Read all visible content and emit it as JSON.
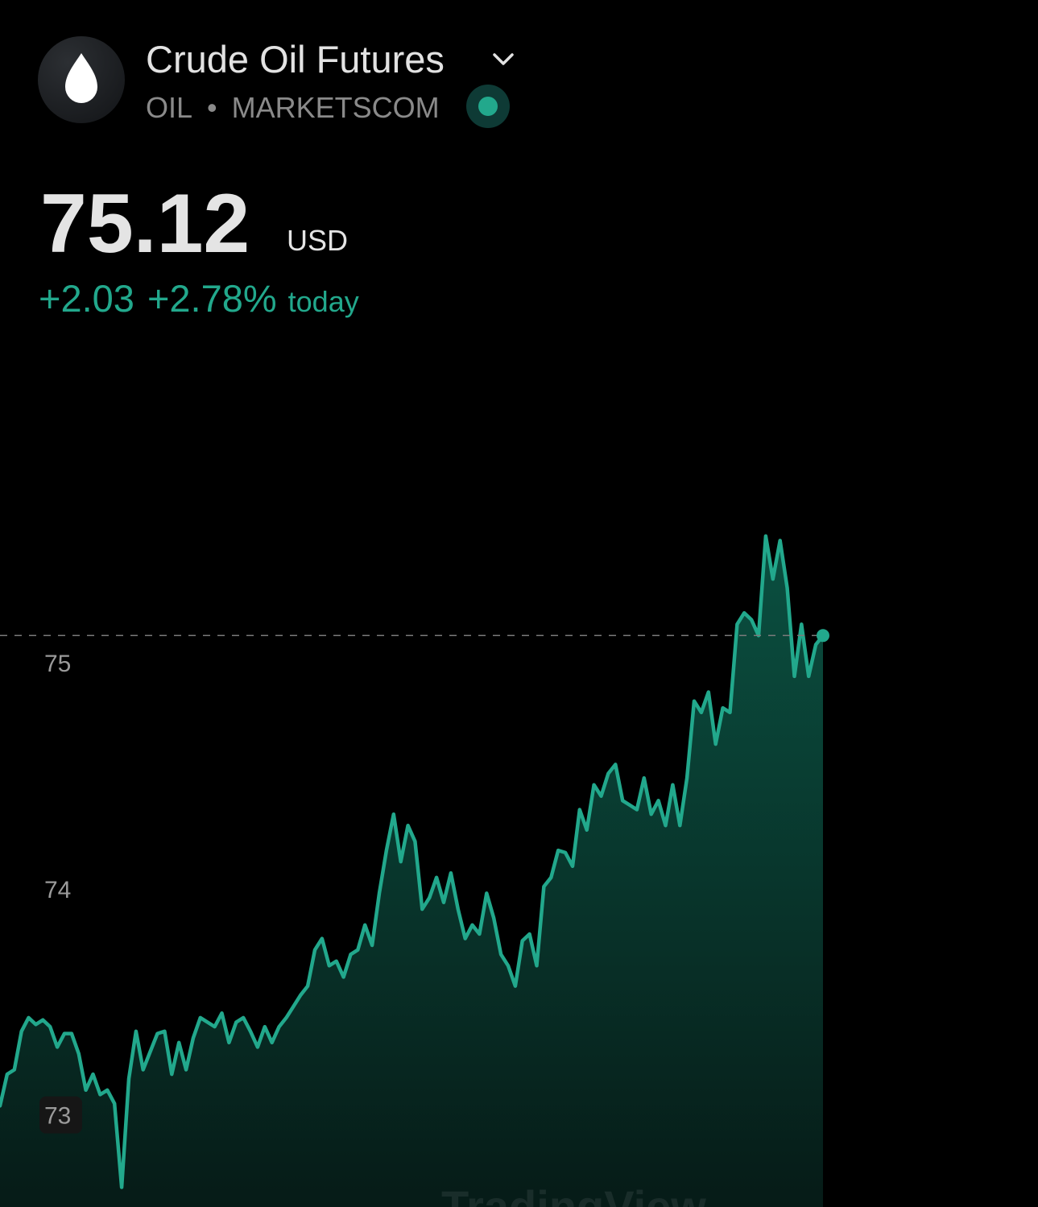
{
  "header": {
    "title": "Crude Oil Futures",
    "symbol": "OIL",
    "separator": "•",
    "exchange": "MARKETSCOM"
  },
  "quote": {
    "price": "75.12",
    "currency": "USD",
    "change": "+2.03",
    "change_percent": "+2.78%",
    "period": "today"
  },
  "chart_data": {
    "type": "area",
    "color": "#22a88c",
    "values": [
      73.04,
      73.18,
      73.2,
      73.37,
      73.43,
      73.4,
      73.42,
      73.39,
      73.3,
      73.36,
      73.36,
      73.27,
      73.11,
      73.18,
      73.09,
      73.11,
      73.05,
      72.68,
      73.16,
      73.37,
      73.2,
      73.28,
      73.36,
      73.37,
      73.18,
      73.32,
      73.2,
      73.34,
      73.43,
      73.41,
      73.39,
      73.45,
      73.32,
      73.41,
      73.43,
      73.37,
      73.3,
      73.39,
      73.32,
      73.39,
      73.43,
      73.48,
      73.53,
      73.57,
      73.73,
      73.78,
      73.66,
      73.68,
      73.61,
      73.71,
      73.73,
      73.84,
      73.75,
      73.98,
      74.17,
      74.33,
      74.12,
      74.28,
      74.21,
      73.91,
      73.96,
      74.05,
      73.94,
      74.07,
      73.91,
      73.78,
      73.84,
      73.8,
      73.98,
      73.87,
      73.71,
      73.66,
      73.57,
      73.77,
      73.8,
      73.66,
      74.01,
      74.05,
      74.17,
      74.16,
      74.1,
      74.35,
      74.26,
      74.46,
      74.41,
      74.51,
      74.55,
      74.39,
      74.37,
      74.35,
      74.49,
      74.33,
      74.39,
      74.28,
      74.46,
      74.28,
      74.49,
      74.83,
      74.78,
      74.87,
      74.64,
      74.8,
      74.78,
      75.17,
      75.22,
      75.19,
      75.12,
      75.56,
      75.37,
      75.54,
      75.33,
      74.94,
      75.17,
      74.94,
      75.08,
      75.12
    ],
    "ylim": [
      72.6,
      76.2
    ],
    "yticks": [
      73,
      74,
      75
    ],
    "grid": false,
    "watermark": "TradingView"
  }
}
